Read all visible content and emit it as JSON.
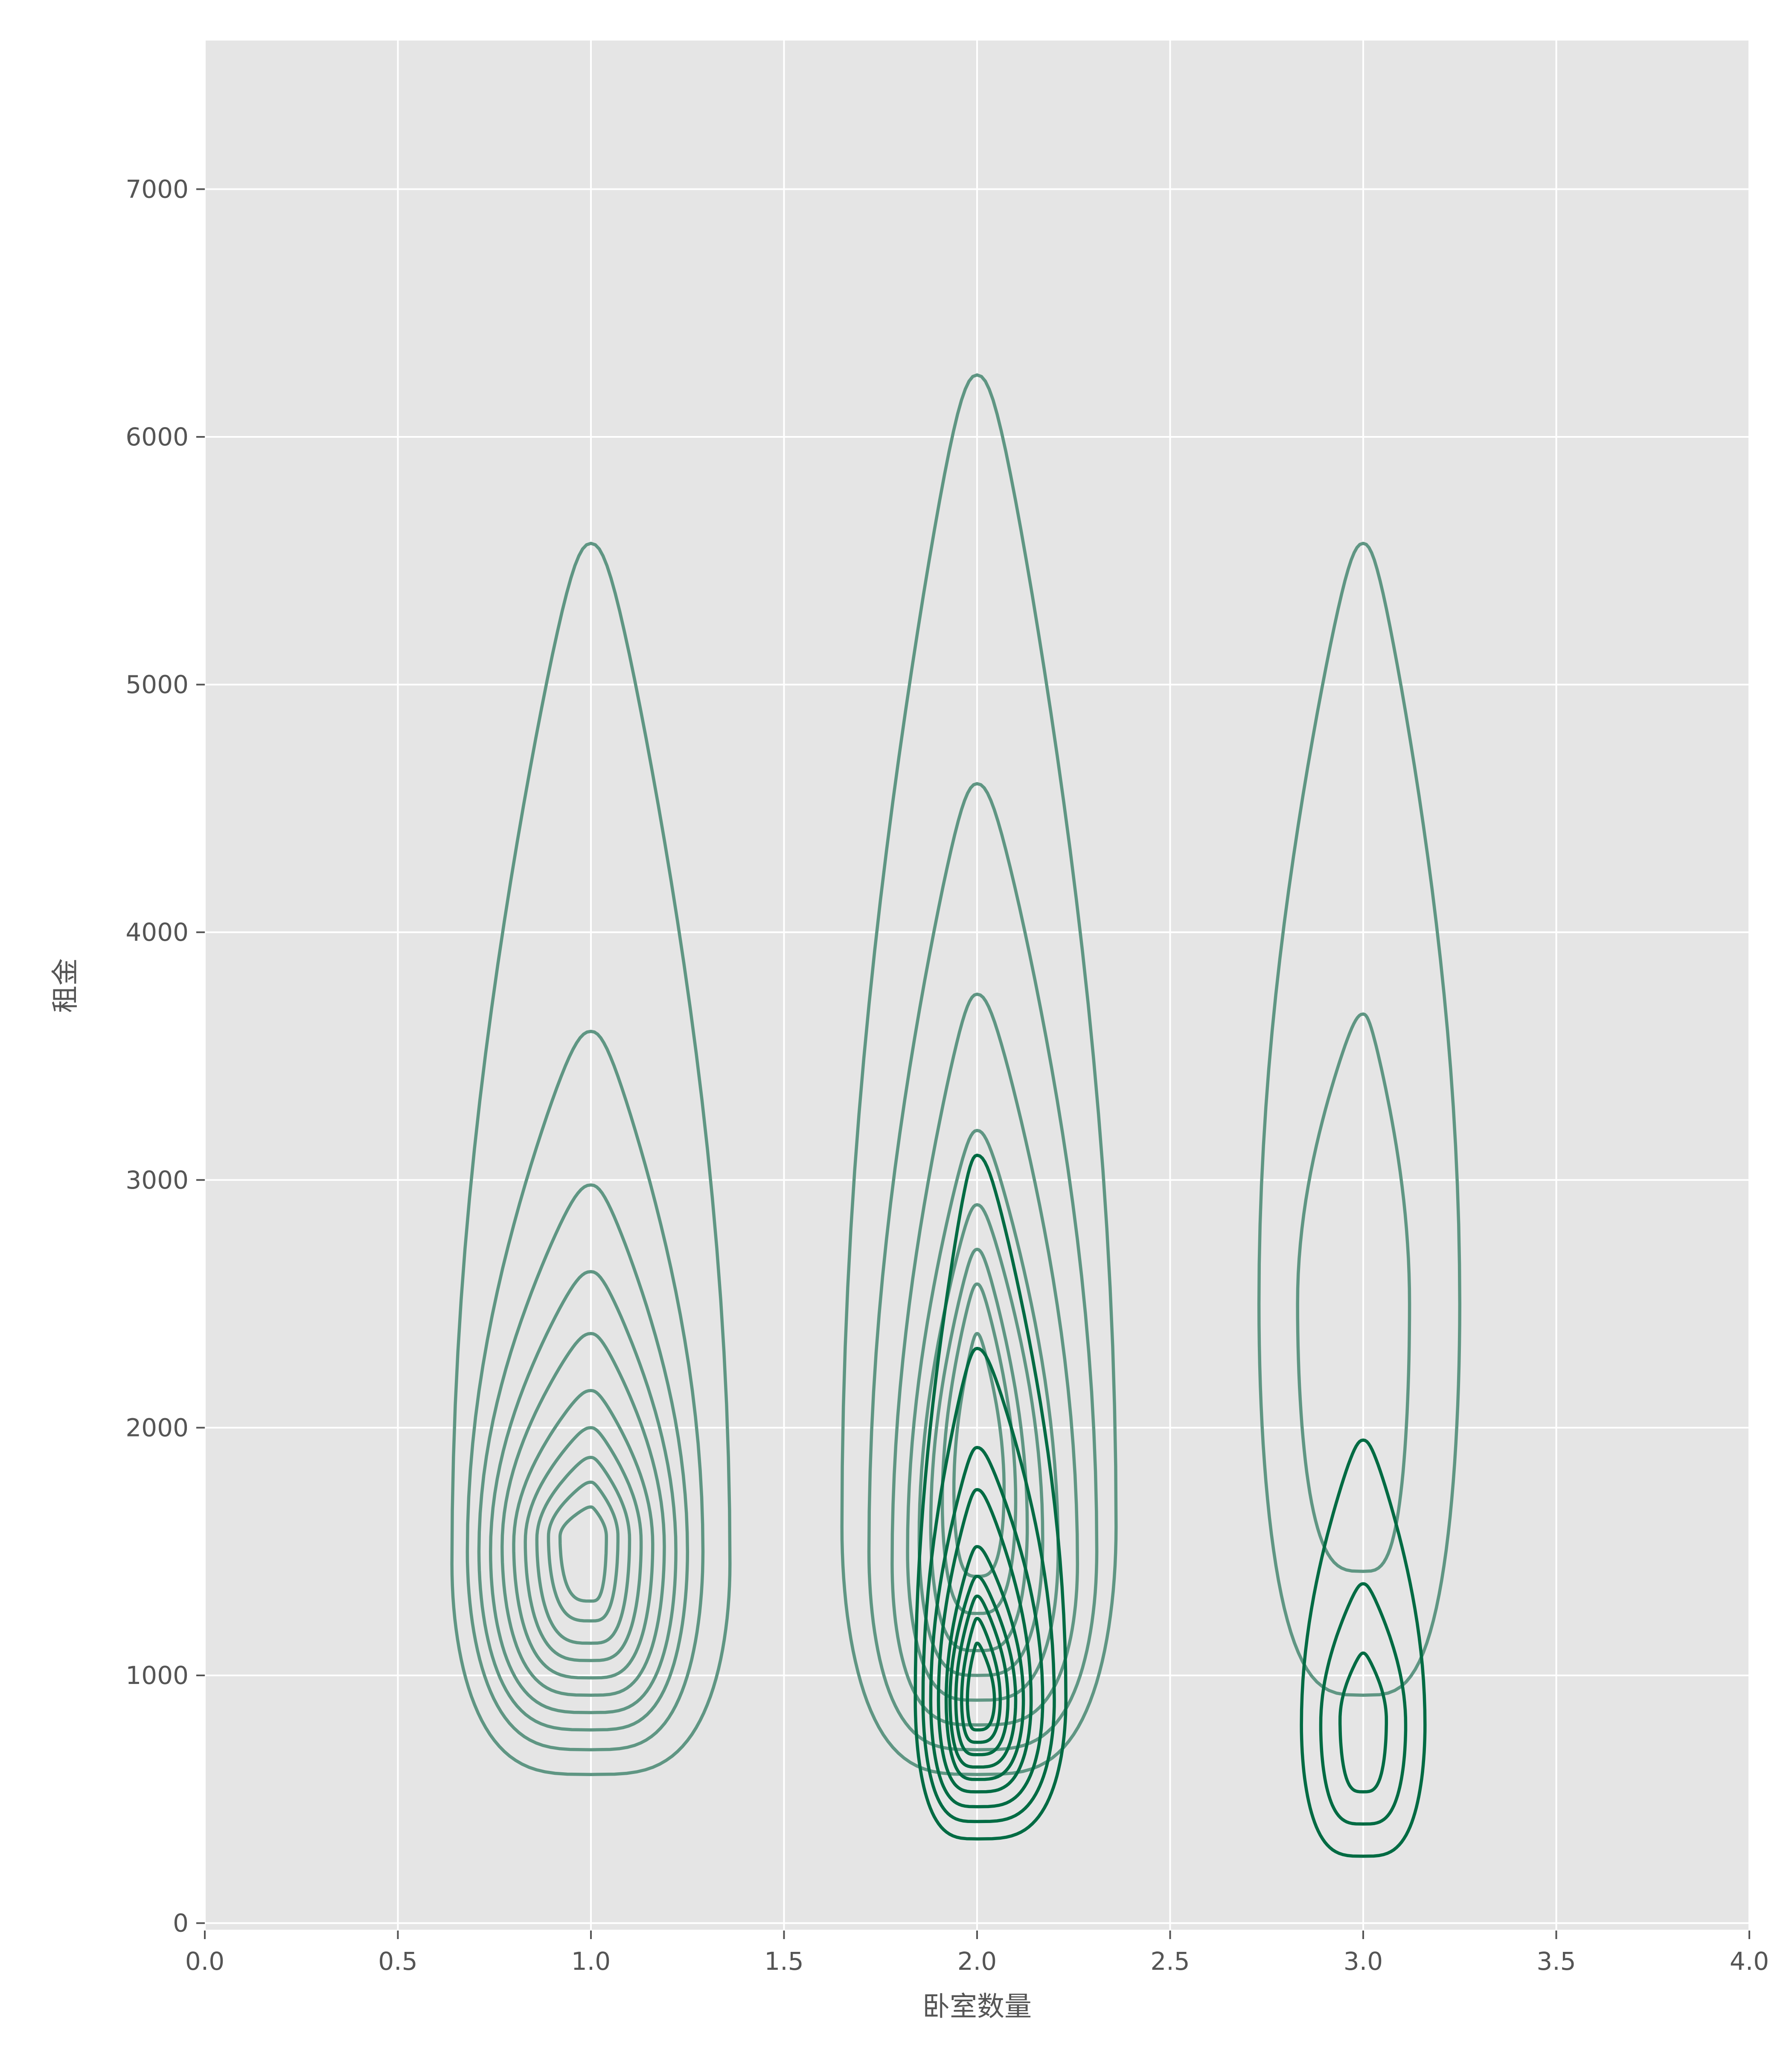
{
  "chart_data": {
    "type": "kde-contour",
    "xlabel": "卧室数量",
    "ylabel": "租金",
    "xlim": [
      0,
      4
    ],
    "ylim": [
      -30,
      7600
    ],
    "xticks": [
      0.0,
      0.5,
      1.0,
      1.5,
      2.0,
      2.5,
      3.0,
      3.5,
      4.0
    ],
    "xtick_labels": [
      "0.0",
      "0.5",
      "1.0",
      "1.5",
      "2.0",
      "2.5",
      "3.0",
      "3.5",
      "4.0"
    ],
    "yticks": [
      0,
      1000,
      2000,
      3000,
      4000,
      5000,
      6000,
      7000
    ],
    "ytick_labels": [
      "0",
      "1000",
      "2000",
      "3000",
      "4000",
      "5000",
      "6000",
      "7000"
    ],
    "grid": true,
    "colors": {
      "background": "#e5e5e5",
      "grid": "#ffffff",
      "contour_light": "#5f9683",
      "contour_dark": "#006b43"
    },
    "groups": [
      {
        "x": 1.0,
        "tone": "light",
        "contours": [
          {
            "bottom": 600,
            "top": 5570,
            "left": 0.64,
            "right": 1.36,
            "y_center": 1450
          },
          {
            "bottom": 700,
            "top": 3600,
            "left": 0.68,
            "right": 1.29,
            "y_center": 1500
          },
          {
            "bottom": 780,
            "top": 2980,
            "left": 0.71,
            "right": 1.25,
            "y_center": 1500
          },
          {
            "bottom": 850,
            "top": 2630,
            "left": 0.74,
            "right": 1.22,
            "y_center": 1500
          },
          {
            "bottom": 920,
            "top": 2380,
            "left": 0.77,
            "right": 1.19,
            "y_center": 1520
          },
          {
            "bottom": 990,
            "top": 2150,
            "left": 0.8,
            "right": 1.16,
            "y_center": 1530
          },
          {
            "bottom": 1060,
            "top": 2000,
            "left": 0.83,
            "right": 1.13,
            "y_center": 1540
          },
          {
            "bottom": 1130,
            "top": 1880,
            "left": 0.86,
            "right": 1.1,
            "y_center": 1550
          },
          {
            "bottom": 1220,
            "top": 1780,
            "left": 0.89,
            "right": 1.07,
            "y_center": 1560
          },
          {
            "bottom": 1300,
            "top": 1680,
            "left": 0.92,
            "right": 1.04,
            "y_center": 1560
          }
        ]
      },
      {
        "x": 2.0,
        "tone": "light",
        "contours": [
          {
            "bottom": 600,
            "top": 6250,
            "left": 1.65,
            "right": 2.36,
            "y_center": 1600
          },
          {
            "bottom": 700,
            "top": 4600,
            "left": 1.72,
            "right": 2.31,
            "y_center": 1500
          },
          {
            "bottom": 800,
            "top": 3750,
            "left": 1.78,
            "right": 2.26,
            "y_center": 1450
          },
          {
            "bottom": 900,
            "top": 3200,
            "left": 1.82,
            "right": 2.21,
            "y_center": 1500
          },
          {
            "bottom": 1000,
            "top": 2900,
            "left": 1.85,
            "right": 2.17,
            "y_center": 1550
          },
          {
            "bottom": 1100,
            "top": 2720,
            "left": 1.88,
            "right": 2.13,
            "y_center": 1600
          },
          {
            "bottom": 1250,
            "top": 2580,
            "left": 1.91,
            "right": 2.1,
            "y_center": 1700
          },
          {
            "bottom": 1400,
            "top": 2380,
            "left": 1.94,
            "right": 2.07,
            "y_center": 1750
          }
        ]
      },
      {
        "x": 2.0,
        "tone": "dark",
        "contours": [
          {
            "bottom": 340,
            "top": 3100,
            "left": 1.84,
            "right": 2.23,
            "y_center": 900
          },
          {
            "bottom": 410,
            "top": 2320,
            "left": 1.86,
            "right": 2.2,
            "y_center": 900
          },
          {
            "bottom": 470,
            "top": 1920,
            "left": 1.88,
            "right": 2.17,
            "y_center": 900
          },
          {
            "bottom": 530,
            "top": 1750,
            "left": 1.9,
            "right": 2.14,
            "y_center": 900
          },
          {
            "bottom": 580,
            "top": 1520,
            "left": 1.92,
            "right": 2.12,
            "y_center": 900
          },
          {
            "bottom": 630,
            "top": 1400,
            "left": 1.93,
            "right": 2.1,
            "y_center": 900
          },
          {
            "bottom": 680,
            "top": 1320,
            "left": 1.945,
            "right": 2.08,
            "y_center": 900
          },
          {
            "bottom": 730,
            "top": 1230,
            "left": 1.96,
            "right": 2.06,
            "y_center": 900
          },
          {
            "bottom": 780,
            "top": 1130,
            "left": 1.975,
            "right": 2.045,
            "y_center": 900
          }
        ]
      },
      {
        "x": 3.0,
        "tone": "light",
        "contours": [
          {
            "bottom": 920,
            "top": 5570,
            "left": 2.73,
            "right": 3.25,
            "y_center": 2500
          },
          {
            "bottom": 1420,
            "top": 3670,
            "left": 2.83,
            "right": 3.12,
            "y_center": 2500
          }
        ]
      },
      {
        "x": 3.0,
        "tone": "dark",
        "contours": [
          {
            "bottom": 270,
            "top": 1950,
            "left": 2.84,
            "right": 3.16,
            "y_center": 800
          },
          {
            "bottom": 400,
            "top": 1370,
            "left": 2.89,
            "right": 3.11,
            "y_center": 800
          },
          {
            "bottom": 530,
            "top": 1090,
            "left": 2.94,
            "right": 3.06,
            "y_center": 820
          }
        ]
      }
    ]
  }
}
